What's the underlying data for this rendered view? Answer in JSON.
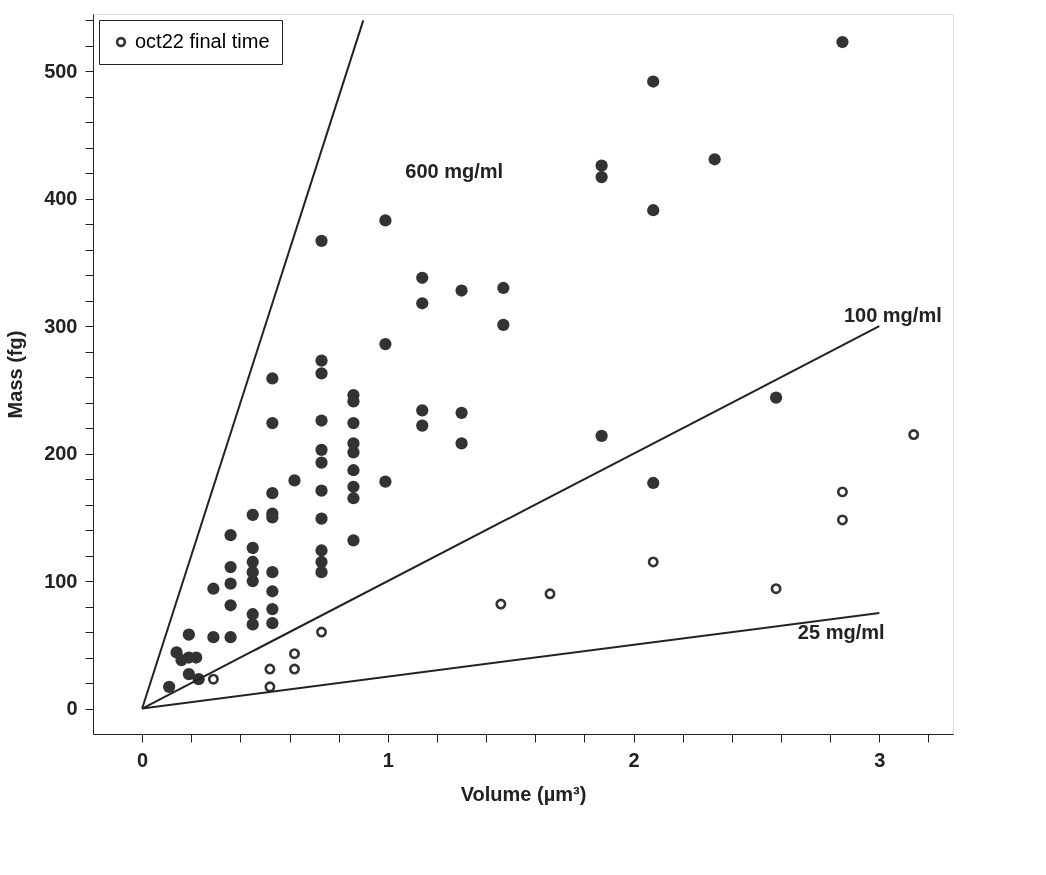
{
  "chart_data": {
    "type": "scatter",
    "xlabel": "Volume (µm³)",
    "ylabel": "Mass (fg)",
    "xlim": [
      -0.2,
      3.3
    ],
    "ylim": [
      -20,
      545
    ],
    "xticks": [
      0,
      {
        "value": 0.2,
        "label": null
      },
      {
        "value": 0.4,
        "label": null
      },
      {
        "value": 0.6,
        "label": null
      },
      {
        "value": 0.8,
        "label": null
      },
      1,
      {
        "value": 1.2,
        "label": null
      },
      {
        "value": 1.4,
        "label": null
      },
      {
        "value": 1.6,
        "label": null
      },
      {
        "value": 1.8,
        "label": null
      },
      2,
      {
        "value": 2.2,
        "label": null
      },
      {
        "value": 2.4,
        "label": null
      },
      {
        "value": 2.6,
        "label": null
      },
      {
        "value": 2.8,
        "label": null
      },
      3,
      {
        "value": 3.2,
        "label": null
      }
    ],
    "yticks": [
      0,
      {
        "value": 20,
        "label": null
      },
      {
        "value": 40,
        "label": null
      },
      {
        "value": 60,
        "label": null
      },
      {
        "value": 80,
        "label": null
      },
      100,
      {
        "value": 120,
        "label": null
      },
      {
        "value": 140,
        "label": null
      },
      {
        "value": 160,
        "label": null
      },
      {
        "value": 180,
        "label": null
      },
      200,
      {
        "value": 220,
        "label": null
      },
      {
        "value": 240,
        "label": null
      },
      {
        "value": 260,
        "label": null
      },
      {
        "value": 280,
        "label": null
      },
      300,
      {
        "value": 320,
        "label": null
      },
      {
        "value": 340,
        "label": null
      },
      {
        "value": 360,
        "label": null
      },
      {
        "value": 380,
        "label": null
      },
      400,
      {
        "value": 420,
        "label": null
      },
      {
        "value": 440,
        "label": null
      },
      {
        "value": 460,
        "label": null
      },
      {
        "value": 480,
        "label": null
      },
      500,
      {
        "value": 520,
        "label": null
      },
      {
        "value": 540,
        "label": null
      }
    ],
    "grid": false,
    "legend": "top left",
    "series": [
      {
        "type": "scatter",
        "color": "#333333",
        "marker": "circle",
        "x": [
          0.11,
          0.14,
          0.16,
          0.19,
          0.22,
          0.19,
          0.23,
          0.19,
          0.29,
          0.29,
          0.36,
          0.36,
          0.36,
          0.36,
          0.36,
          0.45,
          0.45,
          0.45,
          0.45,
          0.45,
          0.45,
          0.45,
          0.53,
          0.53,
          0.53,
          0.53,
          0.53,
          0.53,
          0.53,
          0.53,
          0.53,
          0.62,
          0.73,
          0.73,
          0.73,
          0.73,
          0.73,
          0.73,
          0.73,
          0.73,
          0.73,
          0.73,
          0.73,
          0.86,
          0.86,
          0.86,
          0.86,
          0.86,
          0.86,
          0.86,
          0.86,
          0.86,
          0.99,
          0.99,
          0.99,
          1.14,
          1.14,
          1.14,
          1.14,
          1.3,
          1.3,
          1.3,
          1.47,
          1.47,
          1.87,
          1.87,
          1.87,
          2.08,
          2.08,
          2.08,
          2.33,
          2.58,
          2.85
        ],
        "values": [
          17,
          44,
          38,
          40,
          40,
          27,
          23,
          58,
          94,
          56,
          136,
          111,
          98,
          81,
          56,
          152,
          126,
          115,
          107,
          100,
          74,
          66,
          259,
          224,
          169,
          153,
          150,
          107,
          92,
          78,
          67,
          179,
          367,
          273,
          263,
          226,
          203,
          193,
          171,
          149,
          124,
          115,
          107,
          246,
          241,
          224,
          208,
          201,
          187,
          174,
          165,
          132,
          383,
          286,
          178,
          338,
          318,
          234,
          222,
          328,
          232,
          208,
          330,
          301,
          426,
          417,
          214,
          492,
          391,
          177,
          431,
          244,
          523
        ]
      },
      {
        "type": "scatter",
        "name": "oct22 final time",
        "color": "#333333",
        "marker": "circle",
        "x": [
          0.29,
          0.52,
          0.52,
          0.62,
          0.62,
          0.73,
          1.46,
          1.66,
          2.08,
          2.58,
          2.85,
          2.85,
          3.14
        ],
        "values": [
          23,
          31,
          17,
          43,
          31,
          60,
          82,
          90,
          115,
          94,
          170,
          148,
          215
        ]
      },
      {
        "type": "line",
        "color": "#222222",
        "x": [
          0,
          0.9
        ],
        "values": [
          0,
          540
        ]
      },
      {
        "type": "line",
        "color": "#222222",
        "x": [
          0,
          3
        ],
        "values": [
          0,
          300
        ]
      },
      {
        "type": "line",
        "color": "#222222",
        "x": [
          0,
          3
        ],
        "values": [
          0,
          75
        ]
      }
    ],
    "annotations": [
      "600  mg/ml",
      "100  mg/ml",
      "25  mg/ml"
    ]
  }
}
